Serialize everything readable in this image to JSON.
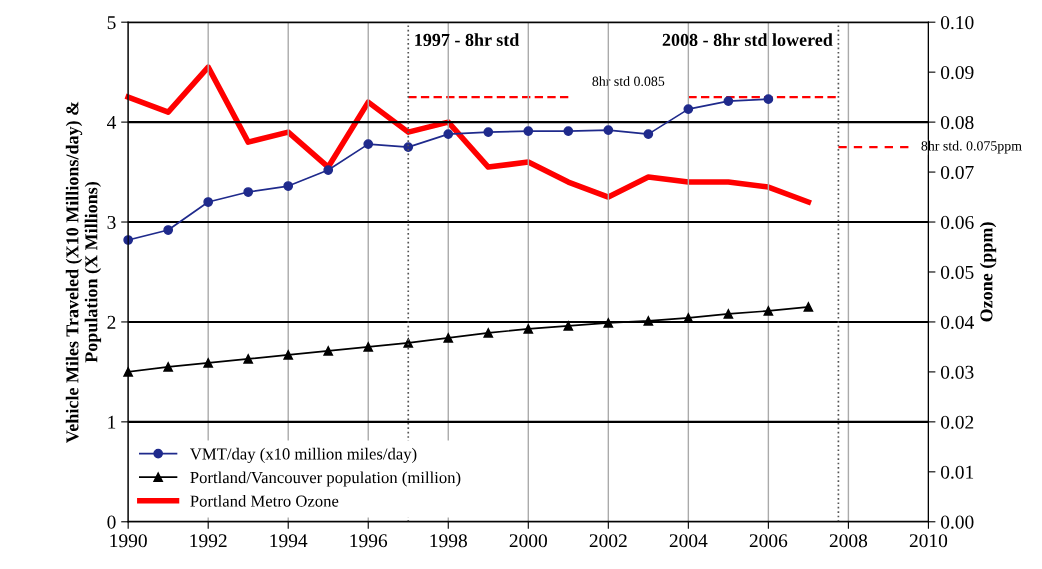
{
  "chart_data": {
    "type": "line",
    "ylabel": "Vehicle Miles Traveled (X10 Millions/day) &\nPopulation (X Millions)",
    "y2label": "Ozone (ppm)",
    "x": [
      1990,
      1991,
      1992,
      1993,
      1994,
      1995,
      1996,
      1997,
      1998,
      1999,
      2000,
      2001,
      2002,
      2003,
      2004,
      2005,
      2006,
      2007
    ],
    "series": [
      {
        "name": "VMT/day (x10 million miles/day)",
        "color": "#1f2a8c",
        "marker": "circle",
        "values": [
          2.82,
          2.92,
          3.2,
          3.3,
          3.36,
          3.52,
          3.78,
          3.75,
          3.88,
          3.9,
          3.91,
          3.91,
          3.92,
          3.88,
          4.13,
          4.21,
          4.23,
          null
        ]
      },
      {
        "name": "Portland/Vancouver population (million)",
        "color": "#000000",
        "marker": "triangle",
        "values": [
          1.5,
          1.55,
          1.59,
          1.63,
          1.67,
          1.71,
          1.75,
          1.79,
          1.84,
          1.89,
          1.93,
          1.96,
          1.99,
          2.01,
          2.04,
          2.08,
          2.11,
          2.15
        ]
      },
      {
        "name": "Portland Metro Ozone",
        "color": "#ff0000",
        "axis": "y2",
        "marker": "none",
        "values": [
          0.085,
          0.082,
          0.091,
          0.076,
          0.078,
          0.071,
          0.084,
          0.078,
          0.08,
          0.071,
          0.072,
          0.068,
          0.065,
          0.069,
          0.068,
          0.068,
          0.067,
          0.064
        ]
      },
      {
        "name": "8hr std 0.085",
        "color": "#ff0000",
        "axis": "y2",
        "line_style": "dashed",
        "marker": "none",
        "x": [
          1997,
          2001,
          2002.5,
          2004,
          2007.75
        ],
        "values": [
          0.085,
          0.085,
          null,
          0.085,
          0.085
        ]
      },
      {
        "name": "8hr std. 0.075ppm",
        "color": "#ff0000",
        "axis": "y2",
        "line_style": "dashed",
        "marker": "none",
        "x": [
          2007.75,
          2009.5
        ],
        "values": [
          0.075,
          0.075
        ]
      }
    ],
    "ref_lines": [
      {
        "axis": "x",
        "value": 1997,
        "label": "1997 - 8hr std",
        "color": "#555555",
        "line_style": "dotted"
      },
      {
        "axis": "x",
        "value": 2007.75,
        "label": "2008 - 8hr std lowered",
        "color": "#555555",
        "line_style": "dotted"
      }
    ],
    "xlim": [
      1990,
      2010
    ],
    "xticks": [
      1990,
      1992,
      1994,
      1996,
      1998,
      2000,
      2002,
      2004,
      2006,
      2008,
      2010
    ],
    "ylim": [
      0,
      5
    ],
    "yticks": [
      0,
      1,
      2,
      3,
      4,
      5
    ],
    "y2lim": [
      0,
      0.1
    ],
    "y2ticks": [
      {
        "value": 0,
        "label": "0.00"
      },
      {
        "value": 0.01,
        "label": "0.01"
      },
      {
        "value": 0.02,
        "label": "0.02"
      },
      {
        "value": 0.03,
        "label": "0.03"
      },
      {
        "value": 0.04,
        "label": "0.04"
      },
      {
        "value": 0.05,
        "label": "0.05"
      },
      {
        "value": 0.06,
        "label": "0.06"
      },
      {
        "value": 0.07,
        "label": "0.07"
      },
      {
        "value": 0.08,
        "label": "0.08"
      },
      {
        "value": 0.09,
        "label": "0.09"
      },
      {
        "value": 0.1,
        "label": "0.10"
      }
    ],
    "grid": true,
    "legend": "bottom left"
  }
}
